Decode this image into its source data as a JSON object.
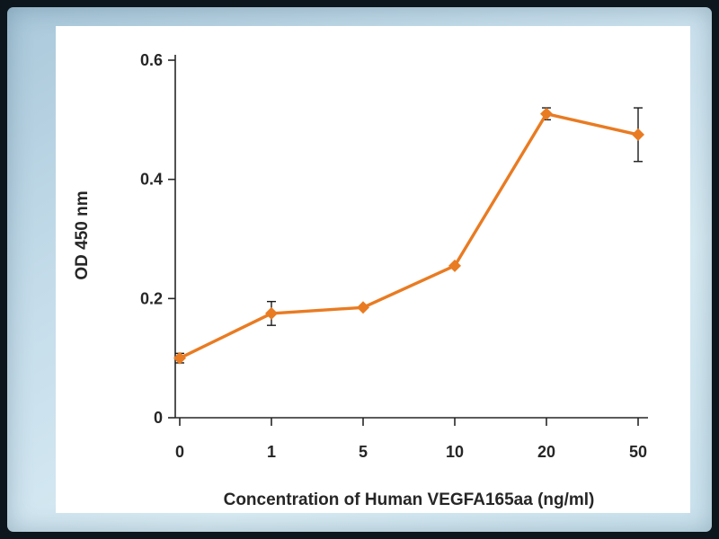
{
  "chart_data": {
    "type": "line",
    "categories": [
      "0",
      "1",
      "5",
      "10",
      "20",
      "50"
    ],
    "series": [
      {
        "name": "OD 450 nm",
        "values": [
          0.1,
          0.175,
          0.185,
          0.255,
          0.51,
          0.475
        ],
        "errors": [
          0.008,
          0.02,
          0,
          0,
          0.01,
          0.045
        ],
        "color": "#e97b22"
      }
    ],
    "title": "",
    "xlabel": "Concentration of Human VEGFA165aa (ng/ml)",
    "ylabel": "OD 450 nm",
    "ylim": [
      0,
      0.6
    ],
    "yticks": [
      0,
      0.2,
      0.4,
      0.6
    ],
    "ytick_labels": [
      "0",
      "0.2",
      "0.4",
      "0.6"
    ],
    "grid": false,
    "legend": "none",
    "marker": "diamond",
    "axis_color": "#262626",
    "text_color": "#262626",
    "error_bar_color": "#1a1a1a",
    "frame_color": "#c4dcea",
    "panel_color": "#ffffff"
  }
}
